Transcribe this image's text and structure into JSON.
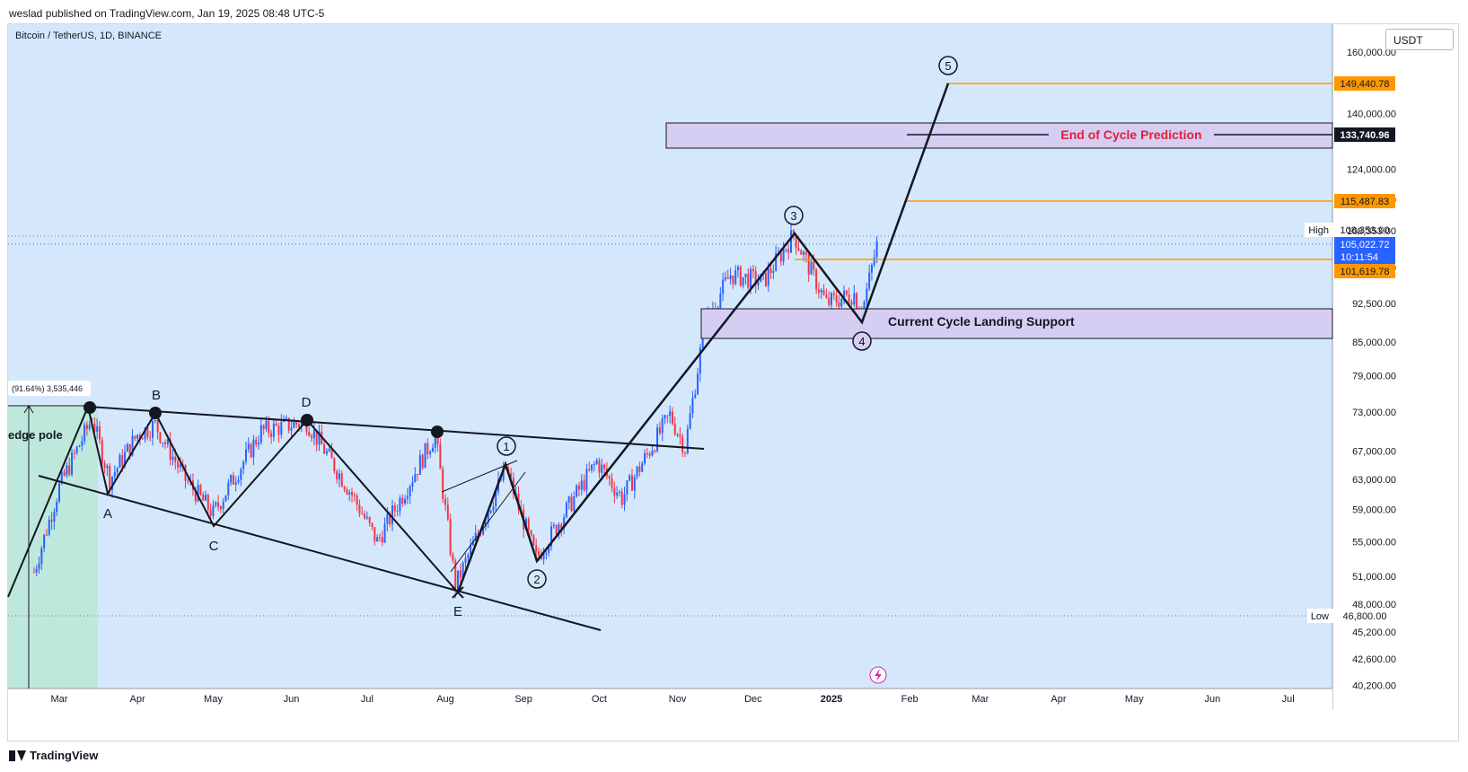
{
  "header": {
    "publisher_line": "weslad published on TradingView.com, Jan 19, 2025 08:48 UTC-5",
    "symbol_line": "Bitcoin / TetherUS, 1D, BINANCE",
    "currency_button": "USDT",
    "brand": "TradingView"
  },
  "colors": {
    "background": "#d5e8fb",
    "up_candle": "#2962ff",
    "down_candle": "#f23645",
    "target_line": "#ff9800",
    "zone_fill": "#d6cdf3",
    "pole_fill": "#bfe8dc",
    "annotation_red": "#e0213a"
  },
  "chart_data": {
    "type": "candlestick",
    "title": "Bitcoin / TetherUS, 1D, BINANCE",
    "x_ticks": [
      "Mar",
      "Apr",
      "May",
      "Jun",
      "Jul",
      "Aug",
      "Sep",
      "Oct",
      "Nov",
      "Dec",
      "2025",
      "Feb",
      "Mar",
      "Apr",
      "May",
      "Jun",
      "Jul"
    ],
    "y_ticks": [
      "40,200.00",
      "42,600.00",
      "45,200.00",
      "48,000.00",
      "51,000.00",
      "55,000.00",
      "59,000.00",
      "63,000.00",
      "67,000.00",
      "73,000.00",
      "79,000.00",
      "85,000.00",
      "92,500.00",
      "100,000.00",
      "108,353.00",
      "116,000.00",
      "124,000.00",
      "140,000.00",
      "160,000.00"
    ],
    "scale": "log",
    "price_labels": {
      "target_5": "149,440.78",
      "end_of_cycle": "133,740.96",
      "target_mid": "115,487.83",
      "high_label": "High",
      "high_value": "108,353.00",
      "current_price": "105,022.72",
      "countdown": "10:11:54",
      "support_top": "101,619.78",
      "low_label": "Low",
      "low_value": "46,800.00"
    },
    "annotations": {
      "end_of_cycle": "End of Cycle Prediction",
      "landing_support": "Current Cycle Landing Support",
      "wedge_pole": "edge pole",
      "pole_measure": "(91.64%) 3,535,446",
      "wave_labels": [
        "1",
        "2",
        "3",
        "4",
        "5"
      ],
      "triangle_labels": [
        "A",
        "B",
        "C",
        "D",
        "E"
      ]
    },
    "ohlc_path": [
      {
        "date": "2024-02-20",
        "price": 51500
      },
      {
        "date": "2024-03-01",
        "price": 62000
      },
      {
        "date": "2024-03-14",
        "price": 72000
      },
      {
        "date": "2024-03-21",
        "price": 63000
      },
      {
        "date": "2024-04-01",
        "price": 69500
      },
      {
        "date": "2024-04-08",
        "price": 71000
      },
      {
        "date": "2024-04-20",
        "price": 63000
      },
      {
        "date": "2024-05-01",
        "price": 58500
      },
      {
        "date": "2024-05-20",
        "price": 70000
      },
      {
        "date": "2024-06-07",
        "price": 71500
      },
      {
        "date": "2024-06-25",
        "price": 61000
      },
      {
        "date": "2024-07-05",
        "price": 55000
      },
      {
        "date": "2024-07-28",
        "price": 69500
      },
      {
        "date": "2024-08-05",
        "price": 50000
      },
      {
        "date": "2024-08-25",
        "price": 64500
      },
      {
        "date": "2024-09-06",
        "price": 53000
      },
      {
        "date": "2024-09-30",
        "price": 65500
      },
      {
        "date": "2024-10-10",
        "price": 60500
      },
      {
        "date": "2024-10-29",
        "price": 72500
      },
      {
        "date": "2024-11-04",
        "price": 67500
      },
      {
        "date": "2024-11-12",
        "price": 89000
      },
      {
        "date": "2024-11-22",
        "price": 98500
      },
      {
        "date": "2024-12-05",
        "price": 97000
      },
      {
        "date": "2024-12-17",
        "price": 107500
      },
      {
        "date": "2024-12-30",
        "price": 92500
      },
      {
        "date": "2025-01-10",
        "price": 94500
      },
      {
        "date": "2025-01-13",
        "price": 90500
      },
      {
        "date": "2025-01-19",
        "price": 105022
      }
    ]
  }
}
